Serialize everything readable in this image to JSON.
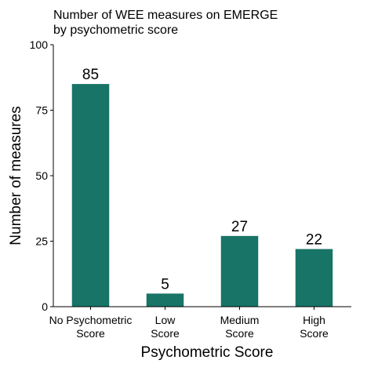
{
  "chart_data": {
    "type": "bar",
    "title_lines": [
      "Number of WEE measures on EMERGE",
      "by psychometric score"
    ],
    "xlabel": "Psychometric Score",
    "ylabel": "Number of measures",
    "categories": [
      [
        "No Psychometric",
        "Score"
      ],
      [
        "Low",
        "Score"
      ],
      [
        "Medium",
        "Score"
      ],
      [
        "High",
        "Score"
      ]
    ],
    "values": [
      85,
      5,
      27,
      22
    ],
    "value_labels": [
      "85",
      "5",
      "27",
      "22"
    ],
    "ylim": [
      0,
      100
    ],
    "yticks": [
      0,
      25,
      50,
      75,
      100
    ],
    "ytick_labels": [
      "0",
      "25",
      "50",
      "75",
      "100"
    ],
    "bar_color": "#177466",
    "grid": false,
    "legend": "none"
  }
}
